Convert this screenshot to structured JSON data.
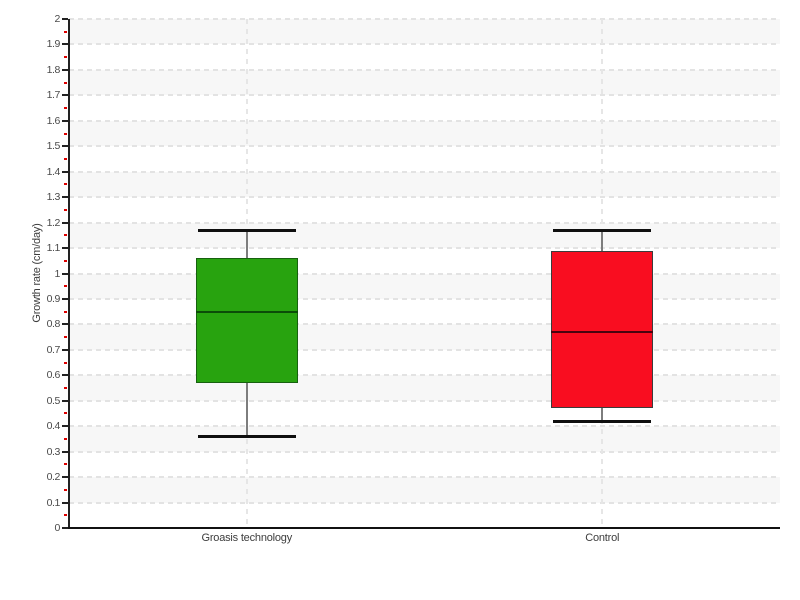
{
  "chart_data": {
    "type": "boxplot",
    "title": "",
    "xlabel": "",
    "ylabel": "Growth rate (cm/day)",
    "ylim": [
      0,
      2
    ],
    "ytick_step": 0.1,
    "yminor_tick_step": 0.05,
    "ytick_labels": [
      "0",
      "0.1",
      "0.2",
      "0.3",
      "0.4",
      "0.5",
      "0.6",
      "0.7",
      "0.8",
      "0.9",
      "1",
      "1.1",
      "1.2",
      "1.3",
      "1.4",
      "1.5",
      "1.6",
      "1.7",
      "1.8",
      "1.9",
      "2"
    ],
    "grid": "horizontal dashed gridlines at each 0.1 tick, vertical dashed gridline at each category center, alternating shaded horizontal bands",
    "legend_position": "none",
    "categories": [
      "Groasis technology",
      "Control"
    ],
    "series": [
      {
        "name": "Groasis technology",
        "min": 0.36,
        "q1": 0.57,
        "median": 0.85,
        "q3": 1.06,
        "max": 1.17,
        "fill": "#28a30f",
        "border": "#17610f",
        "median_color": "#0b4d08"
      },
      {
        "name": "Control",
        "min": 0.42,
        "q1": 0.47,
        "median": 0.77,
        "q3": 1.09,
        "max": 1.17,
        "fill": "#f90d20",
        "border": "#3c3c3c",
        "median_color": "#4a030f"
      }
    ],
    "colors": {
      "background": "#ffffff",
      "band_shade": "#f7f7f7",
      "gridline": "#e3e3e3",
      "axis": "#1a1a1a",
      "tick_label": "#4a4a4a",
      "minor_tick": "#dd0000",
      "whisker_stem": "#7d7d7d",
      "whisker_cap": "#0f0f0f"
    }
  }
}
